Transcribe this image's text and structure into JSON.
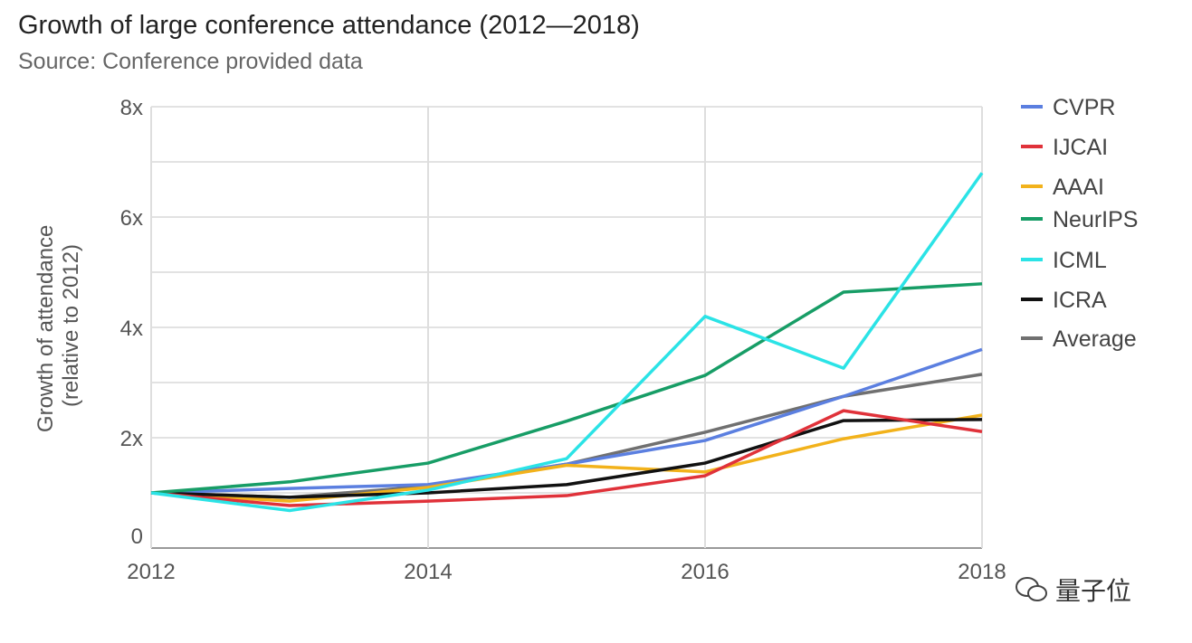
{
  "chart_data": {
    "type": "line",
    "title": "Growth of large conference attendance (2012—2018)",
    "subtitle": "Source: Conference provided data",
    "xlabel": "",
    "ylabel": [
      "Growth of attendance",
      "(relative to 2012)"
    ],
    "x": [
      2012,
      2013,
      2014,
      2015,
      2016,
      2017,
      2018
    ],
    "x_ticks": [
      "2012",
      "2014",
      "2016",
      "2018"
    ],
    "y_ticks": [
      "0",
      "2x",
      "4x",
      "6x",
      "8x"
    ],
    "ylim": [
      0,
      8
    ],
    "grid": true,
    "legend_position": "right",
    "series": [
      {
        "name": "CVPR",
        "color": "#5b7fe0",
        "values": [
          1,
          1.08,
          1.15,
          1.52,
          1.95,
          2.75,
          3.6
        ]
      },
      {
        "name": "IJCAI",
        "color": "#e0323a",
        "values": [
          1,
          0.77,
          0.85,
          0.95,
          1.31,
          2.49,
          2.11
        ]
      },
      {
        "name": "AAAI",
        "color": "#f2b21b",
        "values": [
          1,
          0.85,
          1.1,
          1.5,
          1.38,
          1.98,
          2.41
        ]
      },
      {
        "name": "NeurIPS",
        "color": "#179d66",
        "values": [
          1,
          1.2,
          1.54,
          2.3,
          3.13,
          4.64,
          4.79
        ]
      },
      {
        "name": "ICML",
        "color": "#2be3e6",
        "values": [
          1,
          0.68,
          1.05,
          1.62,
          4.2,
          3.26,
          6.8
        ]
      },
      {
        "name": "ICRA",
        "color": "#111111",
        "values": [
          1,
          0.92,
          1.0,
          1.15,
          1.54,
          2.31,
          2.33
        ]
      },
      {
        "name": "Average",
        "color": "#707070",
        "values": [
          1,
          0.92,
          1.12,
          1.52,
          2.1,
          2.75,
          3.15
        ]
      }
    ]
  },
  "watermark": "量子位"
}
